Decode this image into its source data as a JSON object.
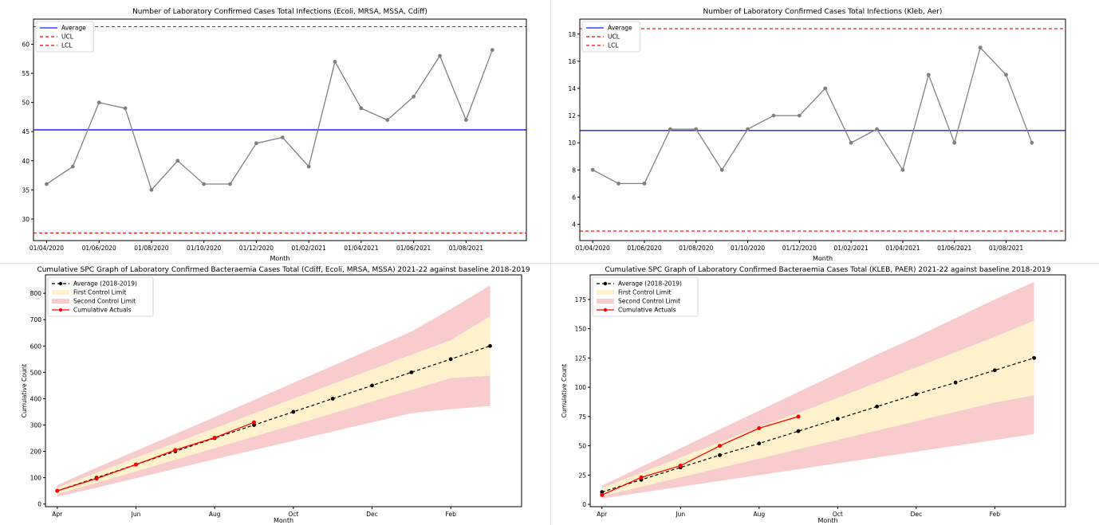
{
  "chart_data": [
    {
      "type": "line",
      "title": "Number of Laboratory Confirmed Cases Total Infections (Ecoli, MRSA, MSSA, Cdiff)",
      "xlabel": "Month",
      "ylabel": "",
      "x": [
        "01/04/2020",
        "01/05/2020",
        "01/06/2020",
        "01/07/2020",
        "01/08/2020",
        "01/09/2020",
        "01/10/2020",
        "01/11/2020",
        "01/12/2020",
        "01/01/2021",
        "01/02/2021",
        "01/03/2021",
        "01/04/2021",
        "01/05/2021",
        "01/06/2021",
        "01/07/2021",
        "01/08/2021",
        "01/09/2021"
      ],
      "xticks": [
        "01/04/2020",
        "01/06/2020",
        "01/08/2020",
        "01/10/2020",
        "01/12/2020",
        "01/02/2021",
        "01/04/2021",
        "01/06/2021",
        "01/08/2021"
      ],
      "values": [
        36,
        39,
        50,
        49,
        35,
        40,
        36,
        36,
        43,
        44,
        39,
        57,
        49,
        47,
        51,
        58,
        47,
        59
      ],
      "average": 45.3,
      "ucl": 63.0,
      "lcl": 27.6,
      "ylim": [
        26.3,
        64.3
      ],
      "yticks": [
        30,
        35,
        40,
        45,
        50,
        55,
        60
      ],
      "legend": {
        "position": "top-left",
        "entries": [
          "Average",
          "UCL",
          "LCL"
        ]
      },
      "colors": {
        "line": "#808080",
        "average": "#1a1aff",
        "limit": "#ff0000"
      },
      "grid": false
    },
    {
      "type": "line",
      "title": "Number of Laboratory Confirmed Cases Total Infections (Kleb, Aer)",
      "xlabel": "Month",
      "ylabel": "",
      "x": [
        "01/04/2020",
        "01/05/2020",
        "01/06/2020",
        "01/07/2020",
        "01/08/2020",
        "01/09/2020",
        "01/10/2020",
        "01/11/2020",
        "01/12/2020",
        "01/01/2021",
        "01/02/2021",
        "01/03/2021",
        "01/04/2021",
        "01/05/2021",
        "01/06/2021",
        "01/07/2021",
        "01/08/2021",
        "01/09/2021"
      ],
      "xticks": [
        "01/04/2020",
        "01/06/2020",
        "01/08/2020",
        "01/10/2020",
        "01/12/2020",
        "01/02/2021",
        "01/04/2021",
        "01/06/2021",
        "01/08/2021"
      ],
      "values": [
        8,
        7,
        7,
        11,
        11,
        8,
        11,
        12,
        12,
        14,
        10,
        11,
        8,
        15,
        10,
        17,
        15,
        10
      ],
      "average": 10.9,
      "ucl": 18.4,
      "lcl": 3.5,
      "ylim": [
        2.8,
        19.1
      ],
      "yticks": [
        4,
        6,
        8,
        10,
        12,
        14,
        16,
        18
      ],
      "legend": {
        "position": "top-left",
        "entries": [
          "Average",
          "UCL",
          "LCL"
        ]
      },
      "colors": {
        "line": "#808080",
        "average": "#1a1aff",
        "limit": "#ff0000"
      },
      "grid": false
    },
    {
      "type": "area",
      "title": "Cumulative SPC Graph of Laboratory Confirmed Bacteraemia Cases Total (Cdiff, Ecoli, MRSA, MSSA) 2021-22 against baseline 2018-2019",
      "xlabel": "Month",
      "ylabel": "Cumulative Count",
      "xticks": [
        "Apr",
        "Jun",
        "Aug",
        "Oct",
        "Dec",
        "Feb"
      ],
      "average": [
        50,
        100,
        150,
        200,
        250,
        300,
        350,
        400,
        450,
        500,
        550,
        600
      ],
      "actuals": [
        50,
        97,
        150,
        205,
        252,
        310
      ],
      "first_limit_lower": [
        38,
        81,
        124,
        168,
        212,
        256,
        300,
        344,
        389,
        433,
        478,
        487
      ],
      "first_limit_upper": [
        62,
        119,
        176,
        232,
        288,
        344,
        400,
        456,
        511,
        567,
        622,
        713
      ],
      "second_limit_lower": [
        28,
        62,
        98,
        134,
        170,
        205,
        240,
        275,
        310,
        345,
        360,
        372
      ],
      "second_limit_upper": [
        72,
        138,
        202,
        266,
        330,
        395,
        460,
        525,
        590,
        655,
        740,
        830
      ],
      "ylim": [
        -10,
        870
      ],
      "yticks": [
        0,
        100,
        200,
        300,
        400,
        500,
        600,
        700,
        800
      ],
      "legend": {
        "position": "top-left",
        "entries": [
          "Average (2018-2019)",
          "First Control Limit",
          "Second Control Limit",
          "Cumulative Actuals"
        ]
      },
      "colors": {
        "average": "#000000",
        "actuals": "#ff0000",
        "first_limit": "#fff2cc",
        "second_limit": "#f8cccc"
      },
      "grid": false
    },
    {
      "type": "area",
      "title": "Cumulative SPC Graph of Laboratory Confirmed Bacteraemia Cases Total (KLEB, PAER) 2021-22 against baseline 2018-2019",
      "xlabel": "Month",
      "ylabel": "Cumulative Count",
      "xticks": [
        "Apr",
        "Jun",
        "Aug",
        "Oct",
        "Dec",
        "Feb"
      ],
      "average": [
        10.5,
        21,
        31.5,
        42,
        52,
        62.5,
        73,
        83.5,
        94,
        104,
        114.5,
        125
      ],
      "actuals": [
        8,
        23,
        33,
        50,
        65,
        75
      ],
      "first_limit_lower": [
        7,
        15,
        23,
        31,
        39,
        47,
        55,
        63,
        71,
        79,
        87,
        93
      ],
      "first_limit_upper": [
        14,
        27,
        40,
        53,
        66,
        78,
        91,
        104,
        117,
        130,
        143,
        157
      ],
      "second_limit_lower": [
        5,
        10,
        15,
        20,
        25,
        30,
        35,
        40,
        45,
        50,
        55,
        60
      ],
      "second_limit_upper": [
        16,
        32,
        48,
        64,
        80,
        96,
        112,
        128,
        143,
        159,
        175,
        190
      ],
      "ylim": [
        -2,
        196
      ],
      "yticks": [
        0,
        25,
        50,
        75,
        100,
        125,
        150,
        175
      ],
      "legend": {
        "position": "top-left",
        "entries": [
          "Average (2018-2019)",
          "First Control Limit",
          "Second Control Limit",
          "Cumulative Actuals"
        ]
      },
      "colors": {
        "average": "#000000",
        "actuals": "#ff0000",
        "first_limit": "#fff2cc",
        "second_limit": "#f8cccc"
      },
      "grid": false
    }
  ]
}
